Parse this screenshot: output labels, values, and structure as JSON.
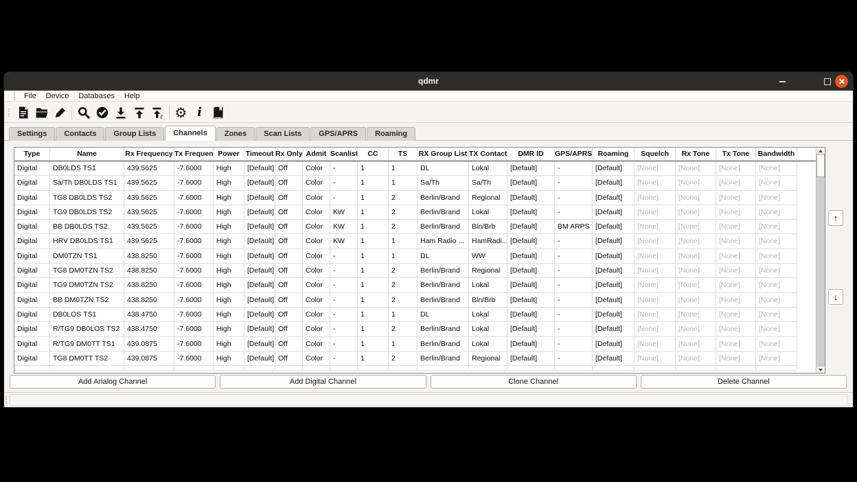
{
  "window": {
    "title": "qdmr",
    "controls": [
      "minimize",
      "maximize",
      "close"
    ]
  },
  "menu_bar": {
    "items": [
      "File",
      "Device",
      "Databases",
      "Help"
    ]
  },
  "toolbar": {
    "icons": [
      "new-file-icon",
      "open-folder-icon",
      "edit-icon",
      "search-icon",
      "verify-icon",
      "download-codeplug-icon",
      "upload-codeplug-icon",
      "upload-callsign-db-icon",
      "settings-gear-icon",
      "about-info-icon",
      "help-book-icon"
    ],
    "gear_glyph": "⚙",
    "info_glyph": "i",
    "callsign_glyph": "ℓ"
  },
  "tabs": {
    "items": [
      "Settings",
      "Contacts",
      "Group Lists",
      "Channels",
      "Zones",
      "Scan Lists",
      "GPS/APRS",
      "Roaming"
    ],
    "active": "Channels"
  },
  "channel_table": {
    "columns": [
      "Type",
      "Name",
      "Rx Frequency",
      "Tx Frequency",
      "Power",
      "Timeout",
      "Rx Only",
      "Admit",
      "Scanlist",
      "CC",
      "TS",
      "RX Group List",
      "TX Contact",
      "DMR ID",
      "GPS/APRS",
      "Roaming",
      "Squelch",
      "Rx Tone",
      "Tx Tone",
      "Bandwidth"
    ],
    "muted_value": "[None]",
    "rows": [
      [
        "Digital",
        "DB0LDS TS1",
        "439.5625",
        "-7.6000",
        "High",
        "[Default]",
        "Off",
        "Color",
        "-",
        "1",
        "1",
        "DL",
        "Lokal",
        "[Default]",
        "-",
        "[Default]",
        "[None]",
        "[None]",
        "[None]",
        "[None]"
      ],
      [
        "Digital",
        "Sa/Th DB0LDS TS1",
        "439.5625",
        "-7.6000",
        "High",
        "[Default]",
        "Off",
        "Color",
        "-",
        "1",
        "1",
        "Sa/Th",
        "Sa/Th",
        "[Default]",
        "-",
        "[Default]",
        "[None]",
        "[None]",
        "[None]",
        "[None]"
      ],
      [
        "Digital",
        "TG8 DB0LDS TS2",
        "439.5625",
        "-7.6000",
        "High",
        "[Default]",
        "Off",
        "Color",
        "-",
        "1",
        "2",
        "Berlin/Brand",
        "Regional",
        "[Default]",
        "-",
        "[Default]",
        "[None]",
        "[None]",
        "[None]",
        "[None]"
      ],
      [
        "Digital",
        "TG9 DB0LDS TS2",
        "439.5625",
        "-7.6000",
        "High",
        "[Default]",
        "Off",
        "Color",
        "KW",
        "1",
        "2",
        "Berlin/Brand",
        "Lokal",
        "[Default]",
        "-",
        "[Default]",
        "[None]",
        "[None]",
        "[None]",
        "[None]"
      ],
      [
        "Digital",
        "BB DB0LDS TS2",
        "439.5625",
        "-7.6000",
        "High",
        "[Default]",
        "Off",
        "Color",
        "KW",
        "1",
        "2",
        "Berlin/Brand",
        "Bln/Brb",
        "[Default]",
        "BM ARPS",
        "[Default]",
        "[None]",
        "[None]",
        "[None]",
        "[None]"
      ],
      [
        "Digital",
        "HRV DB0LDS TS1",
        "439.5625",
        "-7.6000",
        "High",
        "[Default]",
        "Off",
        "Color",
        "KW",
        "1",
        "1",
        "Ham Radio ...",
        "HamRadi...",
        "[Default]",
        "-",
        "[Default]",
        "[None]",
        "[None]",
        "[None]",
        "[None]"
      ],
      [
        "Digital",
        "DM0TZN TS1",
        "438.8250",
        "-7.6000",
        "High",
        "[Default]",
        "Off",
        "Color",
        "-",
        "1",
        "1",
        "DL",
        "WW",
        "[Default]",
        "-",
        "[Default]",
        "[None]",
        "[None]",
        "[None]",
        "[None]"
      ],
      [
        "Digital",
        "TG8 DM0TZN TS2",
        "438.8250",
        "-7.6000",
        "High",
        "[Default]",
        "Off",
        "Color",
        "-",
        "1",
        "2",
        "Berlin/Brand",
        "Regional",
        "[Default]",
        "-",
        "[Default]",
        "[None]",
        "[None]",
        "[None]",
        "[None]"
      ],
      [
        "Digital",
        "TG9 DM0TZN TS2",
        "438.8250",
        "-7.6000",
        "High",
        "[Default]",
        "Off",
        "Color",
        "-",
        "1",
        "2",
        "Berlin/Brand",
        "Lokal",
        "[Default]",
        "-",
        "[Default]",
        "[None]",
        "[None]",
        "[None]",
        "[None]"
      ],
      [
        "Digital",
        "BB DM0TZN TS2",
        "438.8250",
        "-7.6000",
        "High",
        "[Default]",
        "Off",
        "Color",
        "-",
        "1",
        "2",
        "Berlin/Brand",
        "Bln/Brb",
        "[Default]",
        "-",
        "[Default]",
        "[None]",
        "[None]",
        "[None]",
        "[None]"
      ],
      [
        "Digital",
        "DB0LOS TS1",
        "438.4750",
        "-7.6000",
        "High",
        "[Default]",
        "Off",
        "Color",
        "-",
        "1",
        "1",
        "DL",
        "Lokal",
        "[Default]",
        "-",
        "[Default]",
        "[None]",
        "[None]",
        "[None]",
        "[None]"
      ],
      [
        "Digital",
        "R/TG9 DB0LOS TS2",
        "438.4750",
        "-7.6000",
        "High",
        "[Default]",
        "Off",
        "Color",
        "-",
        "1",
        "2",
        "Berlin/Brand",
        "Lokal",
        "[Default]",
        "-",
        "[Default]",
        "[None]",
        "[None]",
        "[None]",
        "[None]"
      ],
      [
        "Digital",
        "R/TG9 DM0TT TS1",
        "439.0875",
        "-7.6000",
        "High",
        "[Default]",
        "Off",
        "Color",
        "-",
        "1",
        "1",
        "Berlin/Brand",
        "Lokal",
        "[Default]",
        "-",
        "[Default]",
        "[None]",
        "[None]",
        "[None]",
        "[None]"
      ],
      [
        "Digital",
        "TG8 DM0TT TS2",
        "439.0875",
        "-7.6000",
        "High",
        "[Default]",
        "Off",
        "Color",
        "-",
        "1",
        "2",
        "Berlin/Brand",
        "Regional",
        "[Default]",
        "-",
        "[Default]",
        "[None]",
        "[None]",
        "[None]",
        "[None]"
      ]
    ]
  },
  "move_buttons": {
    "up": "↑",
    "down": "↓"
  },
  "action_buttons": [
    "Add Analog Channel",
    "Add Digital Channel",
    "Clone Channel",
    "Delete Channel"
  ],
  "colors": {
    "titlebar": "#2e2d2b",
    "close_button": "#e95420",
    "panel": "#f4f3f1",
    "muted_text": "#b7b7b7",
    "grid_line": "#dcdcdc"
  }
}
